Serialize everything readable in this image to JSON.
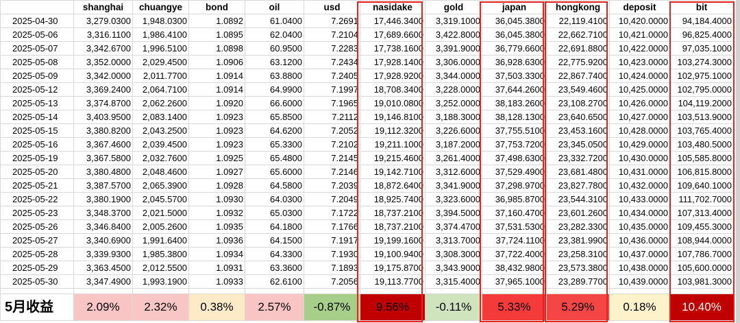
{
  "columns": [
    "",
    "shanghai",
    "chuangye",
    "bond",
    "oil",
    "usd",
    "nasidake",
    "gold",
    "japan",
    "hongkong",
    "deposit",
    "bit"
  ],
  "rows": [
    [
      "2025-04-30",
      "3,279.0300",
      "1,948.0300",
      "1.0892",
      "61.0400",
      "7.2691",
      "17,446.3400",
      "3,319.1000",
      "36,045.3800",
      "22,119.4100",
      "10,420.0000",
      "94,184.4000"
    ],
    [
      "2025-05-06",
      "3,316.1100",
      "1,986.4100",
      "1.0895",
      "62.0400",
      "7.2104",
      "17,689.6600",
      "3,422.8000",
      "36,045.3800",
      "22,662.7100",
      "10,421.0000",
      "96,825.4000"
    ],
    [
      "2025-05-07",
      "3,342.6700",
      "1,996.5100",
      "1.0898",
      "60.9500",
      "7.2283",
      "17,738.1600",
      "3,391.9000",
      "36,779.6600",
      "22,691.8800",
      "10,422.0000",
      "97,035.1000"
    ],
    [
      "2025-05-08",
      "3,352.0000",
      "2,029.4500",
      "1.0906",
      "63.1200",
      "7.2434",
      "17,928.1400",
      "3,306.0000",
      "36,928.6300",
      "22,775.9200",
      "10,423.0000",
      "103,274.3000"
    ],
    [
      "2025-05-09",
      "3,342.0000",
      "2,011.7700",
      "1.0914",
      "63.8800",
      "7.2405",
      "17,928.9200",
      "3,344.0000",
      "37,503.3300",
      "22,867.7400",
      "10,424.0000",
      "102,975.1000"
    ],
    [
      "2025-05-12",
      "3,369.2400",
      "2,064.7100",
      "1.0914",
      "64.9900",
      "7.1997",
      "18,708.3400",
      "3,228.0000",
      "37,644.2600",
      "23,549.4600",
      "10,425.0000",
      "102,795.0000"
    ],
    [
      "2025-05-13",
      "3,374.8700",
      "2,062.2600",
      "1.0920",
      "66.6000",
      "7.1965",
      "19,010.0800",
      "3,252.0000",
      "38,183.2600",
      "23,108.2700",
      "10,426.0000",
      "104,119.2000"
    ],
    [
      "2025-05-14",
      "3,403.9500",
      "2,083.1400",
      "1.0923",
      "65.8500",
      "7.2112",
      "19,146.8100",
      "3,188.3000",
      "38,128.1300",
      "23,640.6500",
      "10,427.0000",
      "103,513.9000"
    ],
    [
      "2025-05-15",
      "3,380.8200",
      "2,043.2500",
      "1.0923",
      "64.6200",
      "7.2052",
      "19,112.3200",
      "3,226.6000",
      "37,755.5100",
      "23,453.1600",
      "10,428.0000",
      "103,765.4000"
    ],
    [
      "2025-05-16",
      "3,367.4600",
      "2,039.4500",
      "1.0923",
      "65.3300",
      "7.2102",
      "19,211.1000",
      "3,187.2000",
      "37,753.7200",
      "23,345.0500",
      "10,429.0000",
      "103,480.5000"
    ],
    [
      "2025-05-19",
      "3,367.5800",
      "2,032.7600",
      "1.0925",
      "65.4800",
      "7.2145",
      "19,215.4600",
      "3,261.4000",
      "37,498.6300",
      "23,332.7200",
      "10,430.0000",
      "105,585.8000"
    ],
    [
      "2025-05-20",
      "3,380.4800",
      "2,048.4600",
      "1.0927",
      "65.6000",
      "7.2146",
      "19,142.7100",
      "3,312.6000",
      "37,529.4900",
      "23,681.4800",
      "10,431.0000",
      "106,815.8000"
    ],
    [
      "2025-05-21",
      "3,387.5700",
      "2,065.3900",
      "1.0928",
      "64.5800",
      "7.2039",
      "18,872.6400",
      "3,341.9000",
      "37,298.9700",
      "23,827.7800",
      "10,432.0000",
      "109,640.1000"
    ],
    [
      "2025-05-22",
      "3,380.1900",
      "2,045.5700",
      "1.0930",
      "64.0300",
      "7.2049",
      "18,925.7400",
      "3,323.6000",
      "36,985.8700",
      "23,544.3100",
      "10,433.0000",
      "111,702.7000"
    ],
    [
      "2025-05-23",
      "3,348.3700",
      "2,021.5000",
      "1.0932",
      "65.0300",
      "7.1722",
      "18,737.2100",
      "3,394.5000",
      "37,160.4700",
      "23,601.2600",
      "10,434.0000",
      "107,313.4000"
    ],
    [
      "2025-05-26",
      "3,346.8400",
      "2,005.2600",
      "1.0935",
      "64.1800",
      "7.1766",
      "18,737.2100",
      "3,374.4700",
      "37,531.5300",
      "23,282.3300",
      "10,435.0000",
      "109,455.3000"
    ],
    [
      "2025-05-27",
      "3,340.6900",
      "1,991.6400",
      "1.0936",
      "64.1500",
      "7.1917",
      "19,199.1600",
      "3,313.7000",
      "37,724.1100",
      "23,381.9900",
      "10,436.0000",
      "108,944.0000"
    ],
    [
      "2025-05-28",
      "3,339.9300",
      "1,985.3800",
      "1.0934",
      "64.3300",
      "7.1930",
      "19,100.9400",
      "3,308.3000",
      "37,722.4000",
      "23,258.3100",
      "10,437.0000",
      "107,786.7000"
    ],
    [
      "2025-05-29",
      "3,363.4500",
      "2,012.5500",
      "1.0931",
      "63.3600",
      "7.1893",
      "19,175.8700",
      "3,343.9000",
      "38,432.9800",
      "23,573.3800",
      "10,438.0000",
      "105,600.0000"
    ],
    [
      "2025-05-30",
      "3,347.4900",
      "1,993.1900",
      "1.0933",
      "62.6100",
      "7.2056",
      "19,113.7700",
      "3,315.4000",
      "37,965.1000",
      "23,289.7700",
      "10,439.0000",
      "103,981.3000"
    ]
  ],
  "summary": {
    "label": "5月收益",
    "values": [
      "2.09%",
      "2.32%",
      "0.38%",
      "2.57%",
      "-0.87%",
      "9.56%",
      "-0.11%",
      "5.33%",
      "5.29%",
      "0.18%",
      "10.40%"
    ],
    "colors": [
      "#f8c4c4",
      "#f9c6c6",
      "#fdebc8",
      "#f8c4c4",
      "#a7cf8a",
      "#c00000",
      "#cfe3bc",
      "#f53a3a",
      "#f54646",
      "#fef2cb",
      "#c00000"
    ],
    "text_colors": [
      "#000000",
      "#000000",
      "#000000",
      "#000000",
      "#000000",
      "#000000",
      "#000000",
      "#000000",
      "#000000",
      "#000000",
      "#ffffff"
    ]
  },
  "highlight_border_color": "#e8211b"
}
